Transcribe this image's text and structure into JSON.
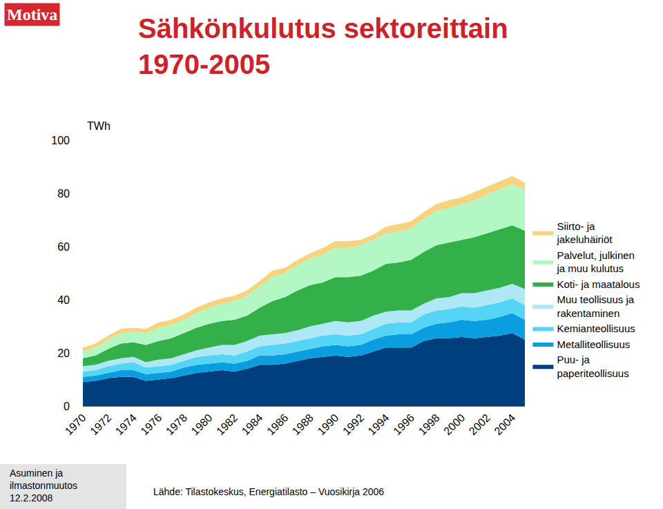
{
  "chart_data": {
    "type": "area",
    "title": "Sähkönkulutus sektoreittain 1970-2005",
    "y_label": "TWh",
    "annotations": [
      "Motiva",
      "Asuminen ja ilmastonmuutos 12.2.2008",
      "Lähde: Tilastokeskus, Energiatilasto – Vuosikirja 2006"
    ],
    "stacked": true,
    "grid": false,
    "legend": "right",
    "x": [
      1970,
      1971,
      1972,
      1973,
      1974,
      1975,
      1976,
      1977,
      1978,
      1979,
      1980,
      1981,
      1982,
      1983,
      1984,
      1985,
      1986,
      1987,
      1988,
      1989,
      1990,
      1991,
      1992,
      1993,
      1994,
      1995,
      1996,
      1997,
      1998,
      1999,
      2000,
      2001,
      2002,
      2003,
      2004,
      2005
    ],
    "xlim": [
      1970,
      2005
    ],
    "xticks": [
      1970,
      1972,
      1974,
      1976,
      1978,
      1980,
      1982,
      1984,
      1986,
      1988,
      1990,
      1992,
      1994,
      1996,
      1998,
      2000,
      2002,
      2004
    ],
    "ylim": [
      0,
      100
    ],
    "yticks": [
      0,
      20,
      40,
      60,
      80,
      100
    ],
    "series": [
      {
        "name": "Puu- ja paperiteollisuus",
        "color": "#003f7d",
        "values": [
          9,
          9.5,
          10.5,
          11,
          11,
          9.5,
          10,
          10.5,
          11.5,
          12.5,
          13,
          13.5,
          13,
          14,
          15.5,
          15.5,
          16,
          17,
          18,
          18.5,
          19,
          18.5,
          19,
          20.5,
          22,
          22,
          22,
          24.5,
          25.5,
          25.5,
          26,
          25.5,
          26,
          26.5,
          27.5,
          25
        ]
      },
      {
        "name": "Metalliteollisuus",
        "color": "#0a9ee0",
        "values": [
          2,
          2,
          2,
          2.5,
          2.5,
          2.5,
          2.5,
          2.5,
          3,
          3,
          3,
          3,
          3,
          3,
          3.5,
          3.5,
          3.5,
          3.5,
          3.5,
          4,
          4,
          4,
          4,
          4.5,
          4.5,
          5,
          5,
          5,
          5.5,
          6,
          6.5,
          6.5,
          6.5,
          7,
          7.5,
          7.5
        ]
      },
      {
        "name": "Kemianteollisuus",
        "color": "#55d4f5",
        "values": [
          2,
          2,
          2.5,
          2.5,
          3,
          2.5,
          2.5,
          2.5,
          2.5,
          3,
          3,
          3,
          3,
          3.5,
          3.5,
          4,
          4,
          4,
          4,
          4,
          4,
          4,
          4,
          4,
          4.5,
          4.5,
          4.5,
          5,
          5,
          5,
          5,
          5,
          5.5,
          5.5,
          5.5,
          5.5
        ]
      },
      {
        "name": "Muu teollisuus ja rakentaminen",
        "color": "#aee8f7",
        "values": [
          2,
          2,
          2,
          2,
          2,
          2,
          2.5,
          2.5,
          2.5,
          2.5,
          3,
          3.5,
          4,
          4,
          4,
          4,
          4,
          4,
          4.5,
          4.5,
          5,
          5,
          5,
          5,
          4.5,
          4.5,
          4.5,
          4,
          4.5,
          4.5,
          5,
          5.5,
          5.5,
          5.5,
          5.5,
          6
        ]
      },
      {
        "name": "Koti- ja maatalous",
        "color": "#33b04a",
        "values": [
          3,
          3.5,
          4.5,
          5.5,
          5.5,
          6.5,
          7,
          7.5,
          8,
          8.5,
          9,
          9,
          9.5,
          9.5,
          10.5,
          12.5,
          13.5,
          15,
          15.5,
          15.5,
          16.5,
          17,
          17,
          17,
          18,
          18,
          19,
          19.5,
          20,
          20.5,
          20,
          21,
          21.5,
          22,
          22,
          22
        ]
      },
      {
        "name": "Palvelut, julkinen ja muu kulutus",
        "color": "#b2f7c4",
        "values": [
          2.5,
          3,
          3.5,
          4,
          4,
          4.5,
          5,
          5,
          5,
          5.5,
          6,
          6.5,
          7,
          7.5,
          8,
          9,
          9,
          9.5,
          10,
          10.5,
          11,
          11,
          11.5,
          11.5,
          11.5,
          11.5,
          12,
          12.5,
          13,
          13,
          13.5,
          14,
          14.5,
          15,
          15.5,
          15.5
        ]
      },
      {
        "name": "Siirto- ja jakeluhäiriöt",
        "color": "#f7d27f",
        "values": [
          1.5,
          1.5,
          1.5,
          1.5,
          1.5,
          1.5,
          2,
          2,
          2,
          2,
          2,
          2,
          2,
          2,
          2,
          2.5,
          2,
          2,
          2,
          2.5,
          2.5,
          2.5,
          2,
          2,
          2.5,
          3,
          2.5,
          2.5,
          2.5,
          3,
          2.5,
          3,
          3,
          3,
          3,
          2.5
        ]
      }
    ]
  }
}
